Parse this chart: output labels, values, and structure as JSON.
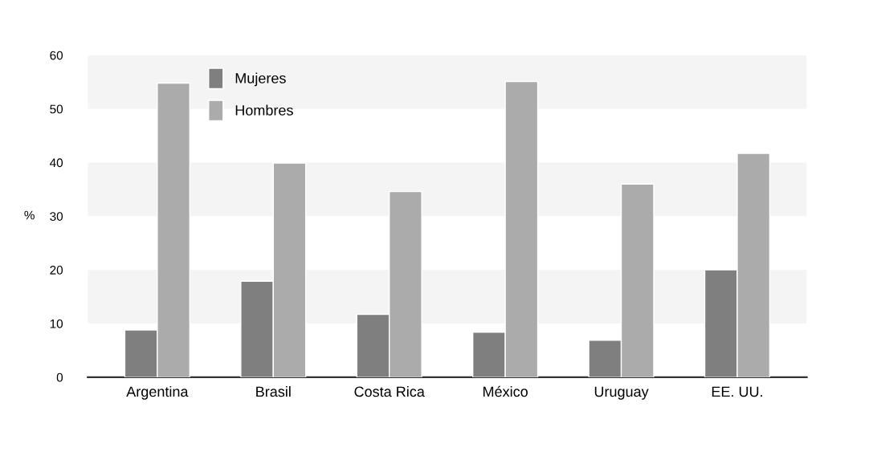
{
  "chart_data": {
    "type": "bar",
    "ylabel": "%",
    "categories": [
      "Argentina",
      "Brasil",
      "Costa Rica",
      "México",
      "Uruguay",
      "EE. UU."
    ],
    "series": [
      {
        "name": "Mujeres",
        "color": "#7f7f7f",
        "values": [
          8.8,
          17.9,
          11.7,
          8.4,
          6.9,
          20
        ]
      },
      {
        "name": "Hombres",
        "color": "#ababab",
        "values": [
          54.8,
          39.9,
          34.6,
          55.1,
          36.0,
          41.7
        ]
      }
    ],
    "ylim": [
      0,
      60
    ],
    "yticks": [
      0,
      10,
      20,
      30,
      40,
      50,
      60
    ],
    "bands": [
      {
        "axis": "y",
        "from": 10,
        "to": 20,
        "color": "#f4f4f4"
      },
      {
        "axis": "y",
        "from": 30,
        "to": 40,
        "color": "#f4f4f4"
      },
      {
        "axis": "y",
        "from": 50,
        "to": 60,
        "color": "#f4f4f4"
      }
    ],
    "grid": false,
    "legend": "top left"
  }
}
